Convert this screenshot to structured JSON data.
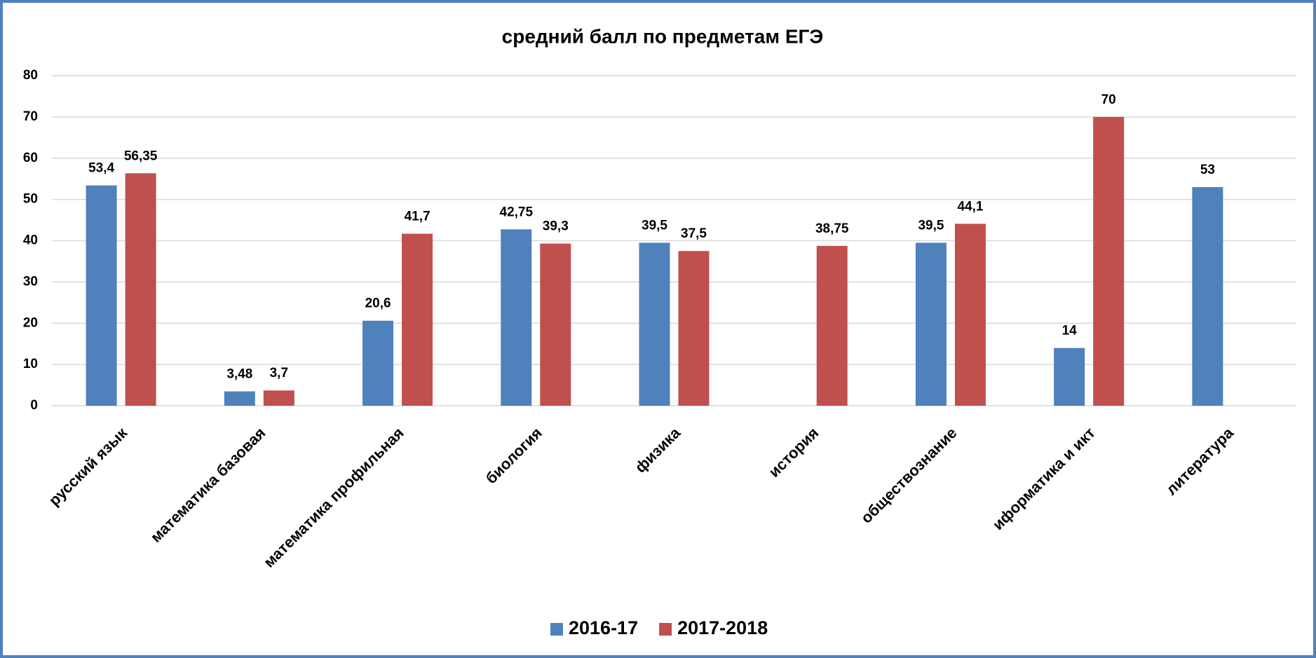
{
  "chart_data": {
    "type": "bar",
    "title": "средний балл по предметам ЕГЭ",
    "categories": [
      "русский язык",
      "математика базовая",
      "математика профильная",
      "биология",
      "физика",
      "история",
      "обществознание",
      "иформатика и икт",
      "литература"
    ],
    "series": [
      {
        "name": "2016-17",
        "color": "#4f81bd",
        "values": [
          53.4,
          3.48,
          20.6,
          42.75,
          39.5,
          null,
          39.5,
          14,
          53
        ],
        "value_labels": [
          "53,4",
          "3,48",
          "20,6",
          "42,75",
          "39,5",
          null,
          "39,5",
          "14",
          "53"
        ]
      },
      {
        "name": "2017-2018",
        "color": "#c0504d",
        "values": [
          56.35,
          3.7,
          41.7,
          39.3,
          37.5,
          38.75,
          44.1,
          70,
          null
        ],
        "value_labels": [
          "56,35",
          "3,7",
          "41,7",
          "39,3",
          "37,5",
          "38,75",
          "44,1",
          "70",
          null
        ]
      }
    ],
    "ylim": [
      0,
      80
    ],
    "yticks": [
      0,
      10,
      20,
      30,
      40,
      50,
      60,
      70,
      80
    ],
    "grid": true,
    "legend": "bottom"
  }
}
